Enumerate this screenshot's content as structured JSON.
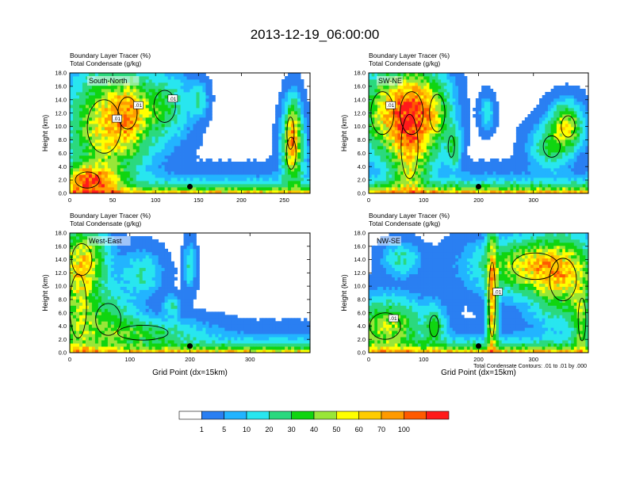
{
  "title": "2013-12-19_06:00:00",
  "colorbar": {
    "labels": [
      "1",
      "5",
      "10",
      "20",
      "30",
      "40",
      "50",
      "60",
      "70",
      "100"
    ],
    "colors": [
      "#ffffff",
      "#2a7ff2",
      "#22b4ff",
      "#28e6ef",
      "#2bd97e",
      "#10d510",
      "#99e638",
      "#ffff00",
      "#ffcc00",
      "#ff9a00",
      "#ff5a00",
      "#ff1a1a"
    ]
  },
  "footnote": "Total Condensate Contours: .01 to .01 by .000",
  "chart_data": [
    {
      "type": "heatmap",
      "name": "South-North",
      "left_label_1": "Boundary Layer Tracer   (%)",
      "left_label_2": "Total Condensate   (g/kg)",
      "ylabel": "Height (km)",
      "xlabel": "",
      "xlim": [
        0,
        280
      ],
      "ylim": [
        0,
        18
      ],
      "xticks": [
        "0",
        "50",
        "100",
        "150",
        "200",
        "250"
      ],
      "yticks": [
        "0.0",
        "2.0",
        "4.0",
        "6.0",
        "8.0",
        "10.0",
        "12.0",
        "14.0",
        "16.0",
        "18.0"
      ],
      "marker": {
        "x": 140,
        "y": 1.0
      },
      "contour_labels": [
        ".01",
        ".01",
        ".01"
      ]
    },
    {
      "type": "heatmap",
      "name": "SW-NE",
      "left_label_1": "Boundary Layer Tracer   (%)",
      "left_label_2": "Total Condensate   (g/kg)",
      "ylabel": "Height (km)",
      "xlabel": "",
      "xlim": [
        0,
        400
      ],
      "ylim": [
        0,
        18
      ],
      "xticks": [
        "0",
        "100",
        "200",
        "300"
      ],
      "yticks": [
        "0.0",
        "2.0",
        "4.0",
        "6.0",
        "8.0",
        "10.0",
        "12.0",
        "14.0",
        "16.0",
        "18.0"
      ],
      "marker": {
        "x": 200,
        "y": 1.0
      },
      "contour_labels": [
        ".01"
      ]
    },
    {
      "type": "heatmap",
      "name": "West-East",
      "left_label_1": "Boundary Layer Tracer   (%)",
      "left_label_2": "Total Condensate   (g/kg)",
      "ylabel": "Height (km)",
      "xlabel": "Grid Point (dx=15km)",
      "xlim": [
        0,
        400
      ],
      "ylim": [
        0,
        18
      ],
      "xticks": [
        "0",
        "100",
        "200",
        "300"
      ],
      "yticks": [
        "0.0",
        "2.0",
        "4.0",
        "6.0",
        "8.0",
        "10.0",
        "12.0",
        "14.0",
        "16.0",
        "18.0"
      ],
      "marker": {
        "x": 200,
        "y": 1.0
      },
      "contour_labels": []
    },
    {
      "type": "heatmap",
      "name": "NW-SE",
      "left_label_1": "Boundary Layer Tracer   (%)",
      "left_label_2": "Total Condensate   (g/kg)",
      "ylabel": "Height (km)",
      "xlabel": "Grid Point (dx=15km)",
      "xlim": [
        0,
        400
      ],
      "ylim": [
        0,
        18
      ],
      "xticks": [
        "0",
        "100",
        "200",
        "300"
      ],
      "yticks": [
        "0.0",
        "2.0",
        "4.0",
        "6.0",
        "8.0",
        "10.0",
        "12.0",
        "14.0",
        "16.0",
        "18.0"
      ],
      "marker": {
        "x": 200,
        "y": 1.0
      },
      "contour_labels": [
        ".01",
        ".01"
      ]
    }
  ]
}
